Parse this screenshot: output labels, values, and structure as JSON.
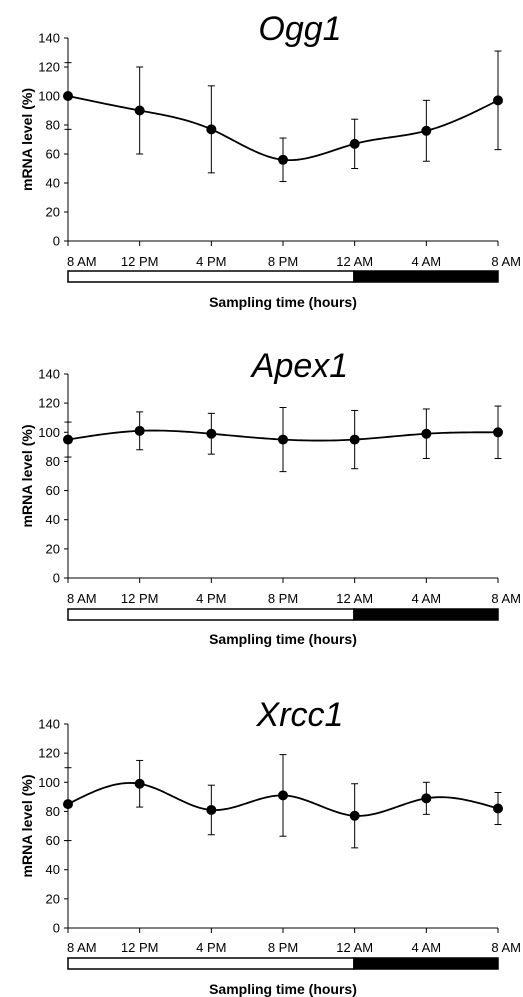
{
  "chart_data": [
    {
      "type": "line",
      "title": "Ogg1",
      "xlabel": "Sampling time (hours)",
      "ylabel": "mRNA level (%)",
      "x": [
        "8 AM",
        "12 PM",
        "4 PM",
        "8 PM",
        "12 AM",
        "4 AM",
        "8 AM"
      ],
      "y_ticks": [
        0,
        20,
        40,
        60,
        80,
        100,
        120,
        140
      ],
      "ylim": [
        0,
        140
      ],
      "series": [
        {
          "values": [
            100,
            90,
            77,
            56,
            67,
            76,
            97
          ],
          "error": [
            23,
            30,
            30,
            15,
            17,
            21,
            34
          ]
        }
      ],
      "light_dark_bar": {
        "light_fraction": 0.665,
        "light_color": "#ffffff",
        "dark_color": "#000000"
      },
      "grid": false
    },
    {
      "type": "line",
      "title": "Apex1",
      "xlabel": "Sampling time (hours)",
      "ylabel": "mRNA level (%)",
      "x": [
        "8 AM",
        "12 PM",
        "4 PM",
        "8 PM",
        "12 AM",
        "4 AM",
        "8 AM"
      ],
      "y_ticks": [
        0,
        20,
        40,
        60,
        80,
        100,
        120,
        140
      ],
      "ylim": [
        0,
        140
      ],
      "series": [
        {
          "values": [
            95,
            101,
            99,
            95,
            95,
            99,
            100
          ],
          "error": [
            12,
            13,
            14,
            22,
            20,
            17,
            18
          ]
        }
      ],
      "light_dark_bar": {
        "light_fraction": 0.665,
        "light_color": "#ffffff",
        "dark_color": "#000000"
      },
      "grid": false
    },
    {
      "type": "line",
      "title": "Xrcc1",
      "xlabel": "Sampling time (hours)",
      "ylabel": "mRNA level (%)",
      "x": [
        "8 AM",
        "12 PM",
        "4 PM",
        "8 PM",
        "12 AM",
        "4 AM",
        "8 AM"
      ],
      "y_ticks": [
        0,
        20,
        40,
        60,
        80,
        100,
        120,
        140
      ],
      "ylim": [
        0,
        140
      ],
      "series": [
        {
          "values": [
            85,
            99,
            81,
            91,
            77,
            89,
            82
          ],
          "error": [
            25,
            16,
            17,
            28,
            22,
            11,
            11
          ]
        }
      ],
      "light_dark_bar": {
        "light_fraction": 0.665,
        "light_color": "#ffffff",
        "dark_color": "#000000"
      },
      "grid": false
    }
  ]
}
